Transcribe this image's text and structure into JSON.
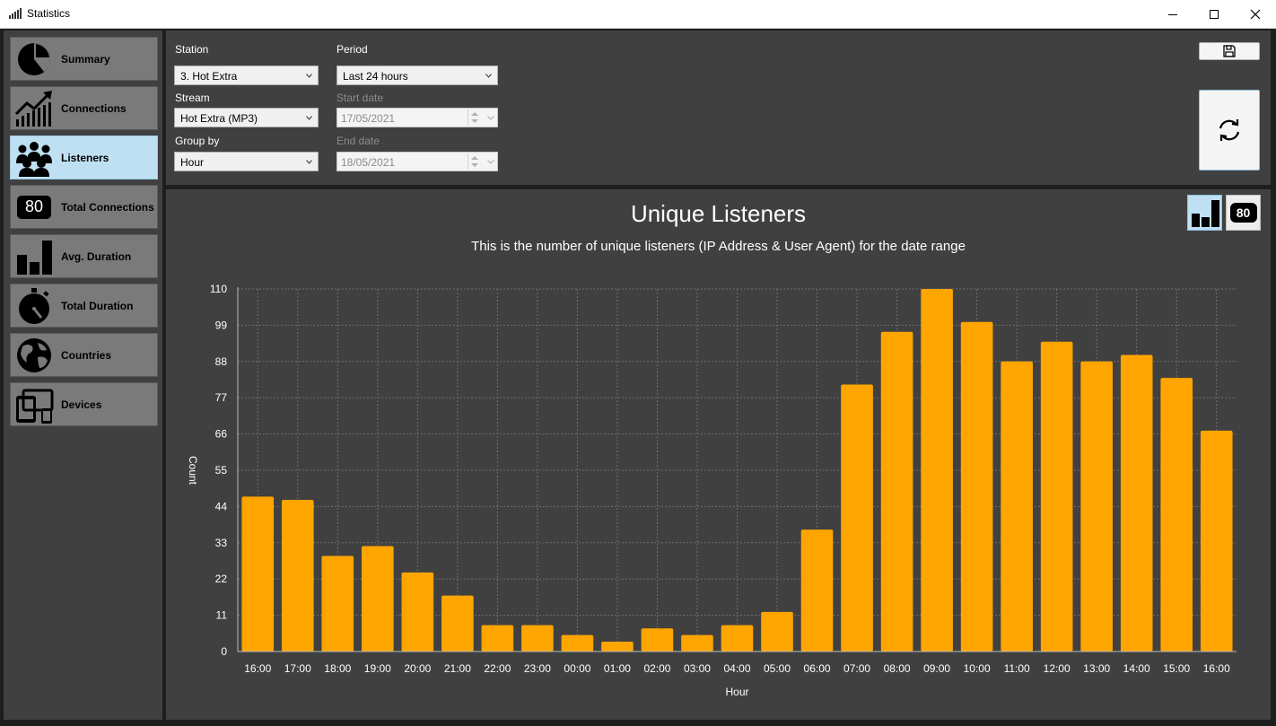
{
  "window": {
    "title": "Statistics"
  },
  "sidebar": {
    "items": [
      {
        "label": "Summary",
        "icon": "pie-chart-icon",
        "active": false
      },
      {
        "label": "Connections",
        "icon": "trending-up-icon",
        "active": false
      },
      {
        "label": "Listeners",
        "icon": "people-group-icon",
        "active": true
      },
      {
        "label": "Total Connections",
        "icon": "number-badge-icon",
        "badge": "80",
        "active": false
      },
      {
        "label": "Avg. Duration",
        "icon": "bar-chart-icon",
        "active": false
      },
      {
        "label": "Total Duration",
        "icon": "stopwatch-icon",
        "active": false
      },
      {
        "label": "Countries",
        "icon": "globe-icon",
        "active": false
      },
      {
        "label": "Devices",
        "icon": "devices-icon",
        "active": false
      }
    ]
  },
  "filters": {
    "station_label": "Station",
    "station_value": "3. Hot Extra",
    "period_label": "Period",
    "period_value": "Last 24 hours",
    "stream_label": "Stream",
    "stream_value": "Hot Extra (MP3)",
    "start_date_label": "Start date",
    "start_date_value": "17/05/2021",
    "group_by_label": "Group by",
    "group_by_value": "Hour",
    "end_date_label": "End date",
    "end_date_value": "18/05/2021"
  },
  "toolbar": {
    "save_icon": "save-icon",
    "refresh_icon": "refresh-icon"
  },
  "view_toggle": {
    "chart_icon": "bar-chart-icon",
    "number_badge": "80"
  },
  "colors": {
    "bar": "#ffa500",
    "panel": "#404040",
    "active_nav": "#bfe0f2"
  },
  "chart_data": {
    "type": "bar",
    "title": "Unique Listeners",
    "subtitle": "This is the number of unique listeners (IP Address & User Agent) for the date range",
    "xlabel": "Hour",
    "ylabel": "Count",
    "ylim": [
      0,
      110
    ],
    "yticks": [
      0,
      11,
      22,
      33,
      44,
      55,
      66,
      77,
      88,
      99,
      110
    ],
    "grid": true,
    "categories": [
      "16:00",
      "17:00",
      "18:00",
      "19:00",
      "20:00",
      "21:00",
      "22:00",
      "23:00",
      "00:00",
      "01:00",
      "02:00",
      "03:00",
      "04:00",
      "05:00",
      "06:00",
      "07:00",
      "08:00",
      "09:00",
      "10:00",
      "11:00",
      "12:00",
      "13:00",
      "14:00",
      "15:00",
      "16:00"
    ],
    "values": [
      47,
      46,
      29,
      32,
      24,
      17,
      8,
      8,
      5,
      3,
      7,
      5,
      8,
      12,
      37,
      81,
      97,
      110,
      100,
      88,
      94,
      88,
      90,
      83,
      67
    ]
  }
}
